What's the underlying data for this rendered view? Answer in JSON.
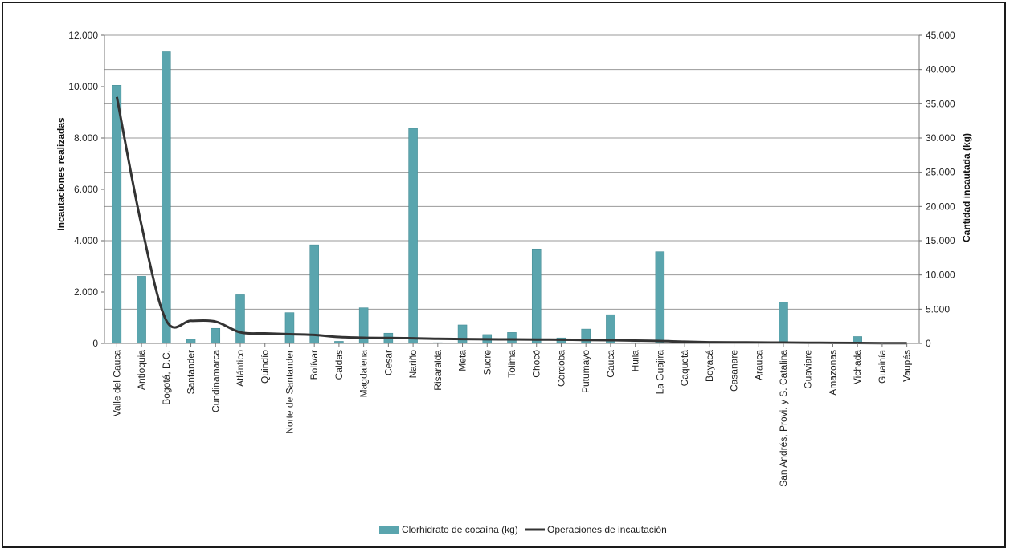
{
  "chart_data": {
    "type": "bar",
    "categories": [
      "Valle del Cauca",
      "Antioquia",
      "Bogotá, D.C.",
      "Santander",
      "Cundinamarca",
      "Atlántico",
      "Quindío",
      "Norte de Santander",
      "Bolívar",
      "Caldas",
      "Magdalena",
      "Cesar",
      "Nariño",
      "Risaralda",
      "Meta",
      "Sucre",
      "Tolima",
      "Chocó",
      "Córdoba",
      "Putumayo",
      "Cauca",
      "Huila",
      "La Guajira",
      "Caquetá",
      "Boyacá",
      "Casanare",
      "Arauca",
      "San Andrés, Provi. y S. Catalina",
      "Guaviare",
      "Amazonas",
      "Vichada",
      "Guainía",
      "Vaupés"
    ],
    "series": [
      {
        "name": "Clorhidrato de cocaína (kg)",
        "kind": "bar",
        "axis": "right",
        "color": "#5aa5ae",
        "values": [
          37700,
          9800,
          42600,
          600,
          2200,
          7100,
          50,
          4500,
          14400,
          300,
          5200,
          1500,
          31400,
          100,
          2700,
          1300,
          1600,
          13800,
          800,
          2100,
          4200,
          100,
          13400,
          50,
          50,
          50,
          50,
          6000,
          50,
          50,
          1000,
          50,
          50
        ]
      },
      {
        "name": "Operaciones de incautación",
        "kind": "line",
        "axis": "left",
        "color": "#333333",
        "values": [
          9600,
          4600,
          900,
          880,
          850,
          430,
          390,
          360,
          330,
          250,
          220,
          210,
          200,
          180,
          170,
          160,
          155,
          150,
          145,
          135,
          125,
          110,
          95,
          65,
          45,
          38,
          35,
          30,
          25,
          20,
          15,
          10,
          8
        ]
      }
    ],
    "ylabel": "Incautaciones realizadas",
    "y2label": "Cantidad incautada (kg)",
    "ylim": [
      0,
      12000
    ],
    "y2lim": [
      0,
      45000
    ],
    "yticks": [
      "0",
      "2.000",
      "4.000",
      "6.000",
      "8.000",
      "10.000",
      "12.000"
    ],
    "y2ticks": [
      "0",
      "5.000",
      "10.000",
      "15.000",
      "20.000",
      "25.000",
      "30.000",
      "35.000",
      "40.000",
      "45.000"
    ],
    "grid": true,
    "legend_position": "bottom"
  }
}
